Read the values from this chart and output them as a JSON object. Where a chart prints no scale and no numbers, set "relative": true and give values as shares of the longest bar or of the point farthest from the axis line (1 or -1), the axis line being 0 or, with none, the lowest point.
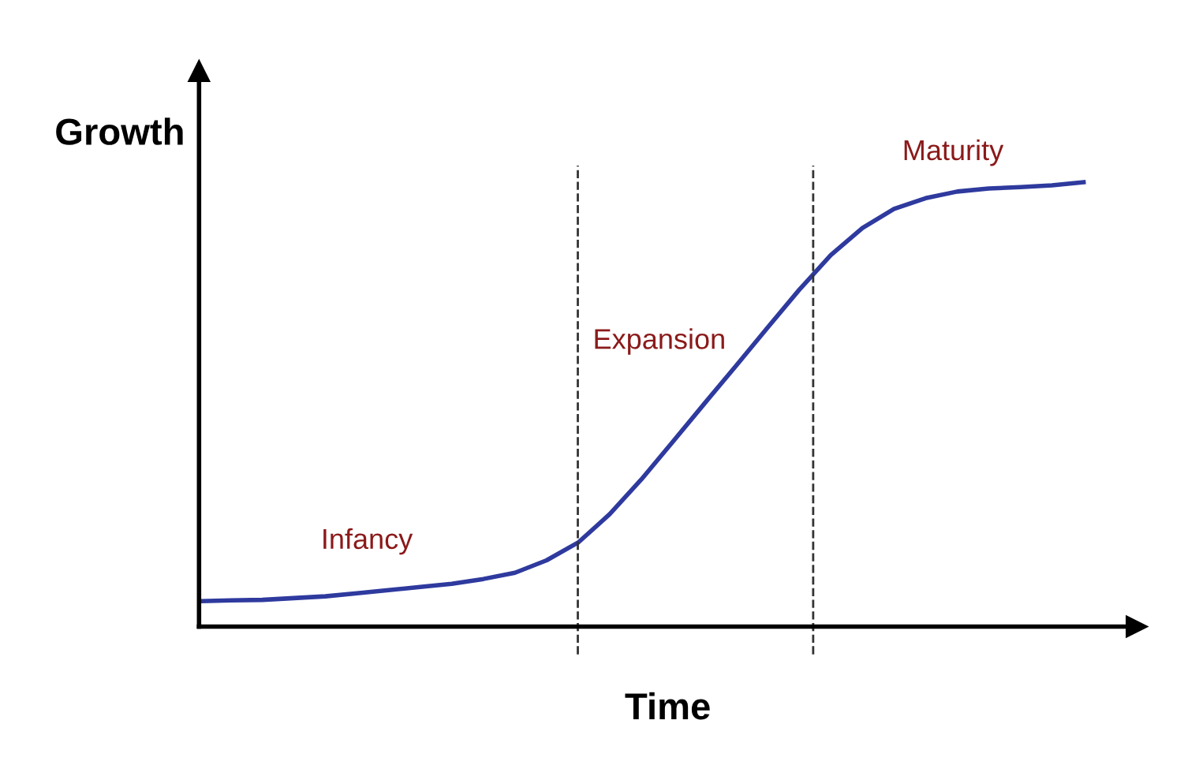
{
  "chart_data": {
    "type": "line",
    "relative": true,
    "xlabel": "Time",
    "ylabel": "Growth",
    "categories": [
      null,
      null,
      null,
      null,
      null,
      null,
      null,
      null,
      null,
      null,
      null,
      null,
      null,
      null,
      null,
      null,
      null,
      null,
      null,
      null,
      null,
      null,
      null,
      null,
      null,
      null,
      null,
      null,
      null
    ],
    "series": [
      {
        "color": "#2e3a9e",
        "values": [
          0.057,
          0.059,
          0.06,
          0.064,
          0.068,
          0.075,
          0.082,
          0.089,
          0.096,
          0.107,
          0.121,
          0.149,
          0.189,
          0.253,
          0.331,
          0.416,
          0.502,
          0.587,
          0.673,
          0.758,
          0.836,
          0.897,
          0.94,
          0.964,
          0.979,
          0.986,
          0.989,
          0.993,
          1
        ]
      }
    ],
    "annotations": [
      "Infancy",
      "Expansion",
      "Maturity"
    ],
    "tick_labels": false,
    "grid": false,
    "legend": false
  }
}
